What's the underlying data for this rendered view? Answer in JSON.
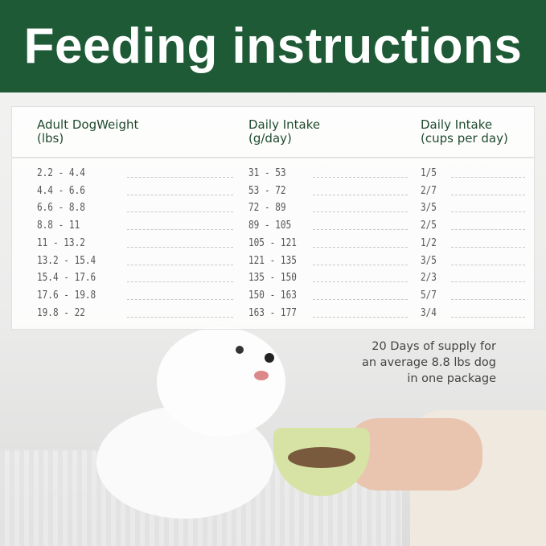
{
  "title": "Feeding instructions",
  "table": {
    "headers": [
      {
        "line1": "Adult DogWeight",
        "line2": "(lbs)"
      },
      {
        "line1": "Daily Intake",
        "line2": "(g/day)"
      },
      {
        "line1": "Daily Intake",
        "line2": "(cups per day)"
      }
    ],
    "rows": [
      [
        "2.2 - 4.4",
        "31 - 53",
        "1/5"
      ],
      [
        "4.4 - 6.6",
        "53 - 72",
        "2/7"
      ],
      [
        "6.6 - 8.8",
        "72 - 89",
        "3/5"
      ],
      [
        "8.8 - 11",
        "89 - 105",
        "2/5"
      ],
      [
        "11 - 13.2",
        "105 - 121",
        "1/2"
      ],
      [
        "13.2 - 15.4",
        "121 - 135",
        "3/5"
      ],
      [
        "15.4 - 17.6",
        "135 - 150",
        "2/3"
      ],
      [
        "17.6 - 19.8",
        "150 - 163",
        "5/7"
      ],
      [
        "19.8 - 22",
        "163 - 177",
        "3/4"
      ]
    ]
  },
  "note": [
    "20 Days of supply for",
    "an average 8.8 lbs dog",
    "in one package"
  ],
  "colors": {
    "brand_green": "#1f5a37",
    "header_text": "#1f4a2e"
  }
}
